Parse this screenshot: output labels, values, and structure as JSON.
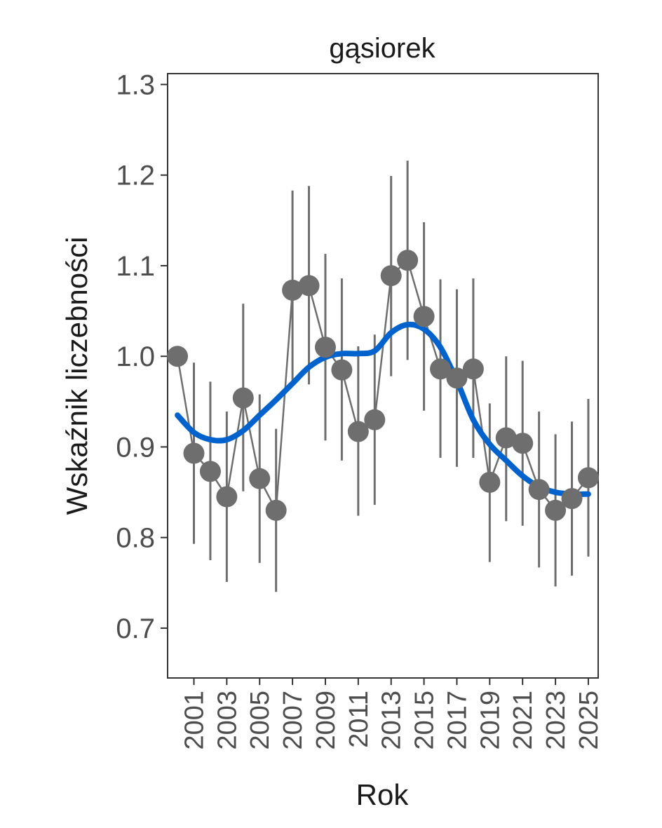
{
  "chart_data": {
    "type": "line",
    "title": "gąsiorek",
    "xlabel": "Rok",
    "ylabel": "Wskaźnik liczebności",
    "xlim": [
      1999.4,
      2025.6
    ],
    "ylim": [
      0.645,
      1.312
    ],
    "yticks": [
      "0.7",
      "0.8",
      "0.9",
      "1.0",
      "1.1",
      "1.2",
      "1.3"
    ],
    "xticks": [
      "2001",
      "2003",
      "2005",
      "2007",
      "2009",
      "2011",
      "2013",
      "2015",
      "2017",
      "2019",
      "2021",
      "2023",
      "2025"
    ],
    "series": [
      {
        "name": "index",
        "color": "#6e6e6e",
        "x": [
          2000,
          2001,
          2002,
          2003,
          2004,
          2005,
          2006,
          2007,
          2008,
          2009,
          2010,
          2011,
          2012,
          2013,
          2014,
          2015,
          2016,
          2017,
          2018,
          2019,
          2020,
          2021,
          2022,
          2023,
          2024,
          2025
        ],
        "y": [
          1.0,
          0.893,
          0.873,
          0.845,
          0.954,
          0.865,
          0.83,
          1.073,
          1.078,
          1.01,
          0.985,
          0.917,
          0.93,
          1.089,
          1.106,
          1.044,
          0.986,
          0.976,
          0.986,
          0.861,
          0.91,
          0.904,
          0.853,
          0.83,
          0.843,
          0.866
        ],
        "lower": [
          null,
          0.793,
          0.775,
          0.751,
          0.851,
          0.772,
          0.74,
          0.967,
          0.969,
          0.907,
          0.885,
          0.824,
          0.836,
          0.978,
          0.996,
          0.94,
          0.888,
          0.878,
          0.888,
          0.773,
          0.818,
          0.813,
          0.767,
          0.746,
          0.758,
          0.779
        ],
        "upper": [
          null,
          0.993,
          0.972,
          0.939,
          1.058,
          0.958,
          0.92,
          1.183,
          1.188,
          1.113,
          1.086,
          1.011,
          1.024,
          1.199,
          1.216,
          1.148,
          1.085,
          1.074,
          1.086,
          0.948,
          1.0,
          0.995,
          0.939,
          0.914,
          0.928,
          0.953
        ]
      },
      {
        "name": "trend",
        "color": "#0062cc",
        "x": [
          2000,
          2001,
          2002,
          2003,
          2004,
          2005,
          2006,
          2007,
          2008,
          2009,
          2010,
          2011,
          2012,
          2013,
          2014,
          2015,
          2016,
          2017,
          2018,
          2019,
          2020,
          2021,
          2022,
          2023,
          2024,
          2025
        ],
        "y": [
          0.935,
          0.916,
          0.908,
          0.908,
          0.918,
          0.935,
          0.952,
          0.97,
          0.988,
          0.999,
          1.003,
          1.003,
          1.006,
          1.026,
          1.035,
          1.03,
          1.01,
          0.973,
          0.93,
          0.903,
          0.885,
          0.868,
          0.856,
          0.85,
          0.848,
          0.848
        ]
      }
    ]
  }
}
